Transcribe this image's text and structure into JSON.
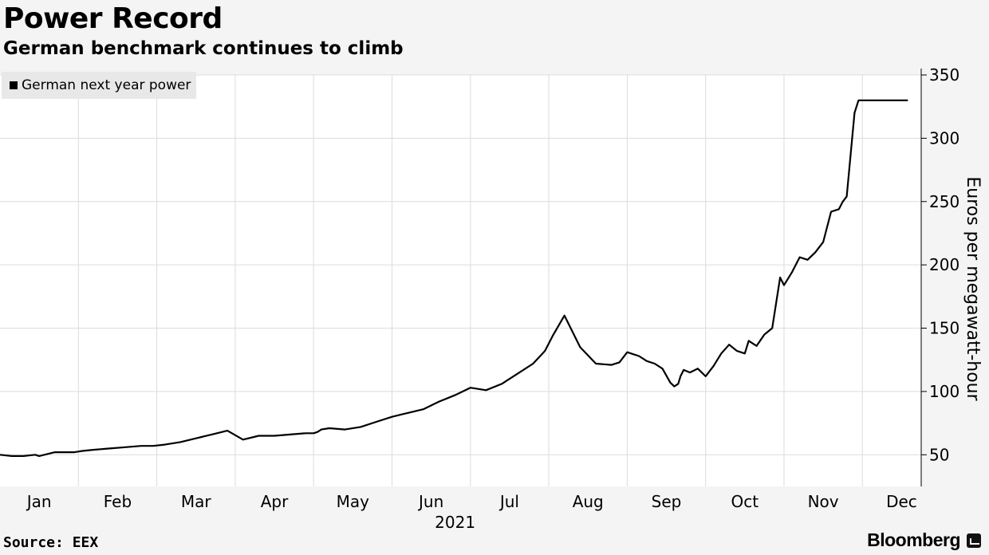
{
  "header": {
    "title": "Power Record",
    "subtitle": "German benchmark continues to climb"
  },
  "footer": {
    "source": "Source: EEX",
    "brand": "Bloomberg"
  },
  "chart_data": {
    "type": "line",
    "title": "Power Record",
    "subtitle": "German benchmark continues to climb",
    "xlabel": "2021",
    "ylabel": "Euros per megawatt-hour",
    "x_axis_label_position": "bottom-center",
    "y_axis_side": "right",
    "ylim": [
      25,
      350
    ],
    "yticks": [
      50,
      100,
      150,
      200,
      250,
      300,
      350
    ],
    "xticks": [
      "Jan",
      "Feb",
      "Mar",
      "Apr",
      "May",
      "Jun",
      "Jul",
      "Aug",
      "Sep",
      "Oct",
      "Nov",
      "Dec"
    ],
    "grid": true,
    "legend": {
      "placement": "top-left",
      "entries": [
        "German next year power"
      ]
    },
    "line_color": "#000000",
    "series": [
      {
        "name": "German next year power",
        "x": [
          0.0,
          0.15,
          0.3,
          0.45,
          0.5,
          0.7,
          0.85,
          0.95,
          1.05,
          1.2,
          1.4,
          1.6,
          1.8,
          1.95,
          2.1,
          2.3,
          2.5,
          2.7,
          2.9,
          3.1,
          3.3,
          3.5,
          3.7,
          3.9,
          4.0,
          4.05,
          4.1,
          4.2,
          4.4,
          4.6,
          4.8,
          5.0,
          5.2,
          5.4,
          5.6,
          5.8,
          6.0,
          6.2,
          6.4,
          6.6,
          6.8,
          6.95,
          7.05,
          7.2,
          7.4,
          7.6,
          7.8,
          7.9,
          8.0,
          8.05,
          8.15,
          8.25,
          8.35,
          8.45,
          8.55,
          8.6,
          8.65,
          8.68,
          8.72,
          8.8,
          8.9,
          9.0,
          9.1,
          9.2,
          9.3,
          9.4,
          9.5,
          9.55,
          9.65,
          9.75,
          9.85,
          9.95,
          10.0,
          10.1,
          10.2,
          10.3,
          10.4,
          10.5,
          10.6,
          10.7,
          10.75,
          10.8,
          10.9,
          10.95,
          11.0,
          11.05,
          11.1,
          11.15,
          11.2,
          11.25,
          11.3,
          11.35,
          11.4,
          11.45,
          11.5,
          11.55,
          11.58
        ],
        "values": [
          50,
          49,
          49,
          50,
          49,
          52,
          52,
          52,
          53,
          54,
          55,
          56,
          57,
          57,
          58,
          60,
          63,
          66,
          69,
          62,
          65,
          65,
          66,
          67,
          67,
          68,
          70,
          71,
          70,
          72,
          76,
          80,
          83,
          86,
          92,
          97,
          103,
          101,
          106,
          114,
          122,
          132,
          144,
          160,
          135,
          122,
          121,
          123,
          131,
          130,
          128,
          124,
          122,
          118,
          107,
          104,
          106,
          112,
          117,
          115,
          118,
          112,
          120,
          130,
          137,
          132,
          130,
          140,
          136,
          145,
          150,
          190,
          184,
          194,
          206,
          204,
          210,
          218,
          242,
          244,
          250,
          254,
          320,
          330,
          330,
          330,
          330,
          330,
          330,
          330,
          330,
          330,
          330,
          330,
          330,
          330,
          330
        ]
      }
    ]
  }
}
